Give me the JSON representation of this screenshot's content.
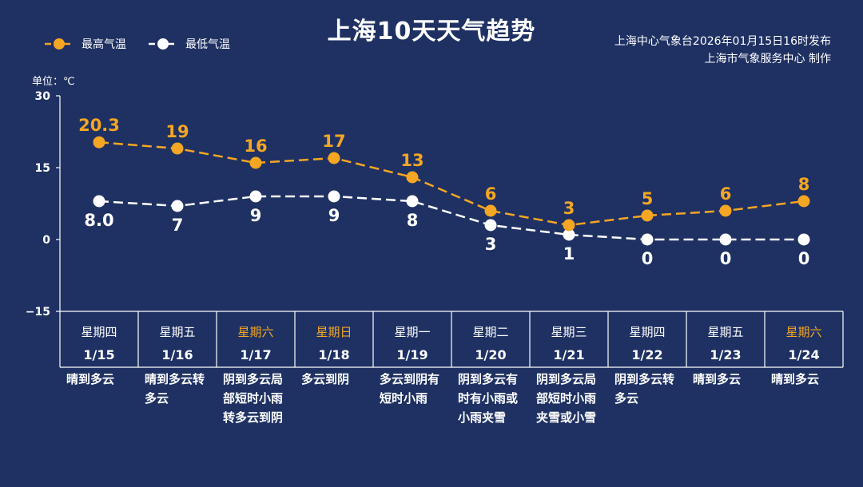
{
  "header": {
    "title": "上海10天天气趋势",
    "source_line1": "上海中心气象台2026年01月15日16时发布",
    "source_line2": "上海市气象服务中心 制作"
  },
  "legend": {
    "high_label": "最高气温",
    "low_label": "最低气温"
  },
  "colors": {
    "background": "#1f3163",
    "high": "#f5a623",
    "low": "#ffffff",
    "weekend": "#f5a623"
  },
  "chart_data": {
    "type": "line",
    "unit_label": "单位：℃",
    "ylim": [
      -15,
      30
    ],
    "yticks": [
      "30",
      "15",
      "0",
      "−15"
    ],
    "ytick_values": [
      30,
      15,
      0,
      -15
    ],
    "series": [
      {
        "name": "最高气温",
        "values": [
          20.3,
          19,
          16,
          17,
          13,
          6,
          3,
          5,
          6,
          8
        ],
        "labels": [
          "20.3",
          "19",
          "16",
          "17",
          "13",
          "6",
          "3",
          "5",
          "6",
          "8"
        ]
      },
      {
        "name": "最低气温",
        "values": [
          8,
          7,
          9,
          9,
          8,
          3,
          1,
          0,
          0,
          0
        ],
        "labels": [
          "8.0",
          "7",
          "9",
          "9",
          "8",
          "3",
          "1",
          "0",
          "0",
          "0"
        ]
      }
    ],
    "days": [
      {
        "weekday": "星期四",
        "date": "1/15",
        "weather": [
          "晴到多云"
        ],
        "weekend": false
      },
      {
        "weekday": "星期五",
        "date": "1/16",
        "weather": [
          "晴到多云转",
          "多云"
        ],
        "weekend": false
      },
      {
        "weekday": "星期六",
        "date": "1/17",
        "weather": [
          "阴到多云局",
          "部短时小雨",
          "转多云到阴"
        ],
        "weekend": true
      },
      {
        "weekday": "星期日",
        "date": "1/18",
        "weather": [
          "多云到阴"
        ],
        "weekend": true
      },
      {
        "weekday": "星期一",
        "date": "1/19",
        "weather": [
          "多云到阴有",
          "短时小雨"
        ],
        "weekend": false
      },
      {
        "weekday": "星期二",
        "date": "1/20",
        "weather": [
          "阴到多云有",
          "时有小雨或",
          "小雨夹雪"
        ],
        "weekend": false
      },
      {
        "weekday": "星期三",
        "date": "1/21",
        "weather": [
          "阴到多云局",
          "部短时小雨",
          "夹雪或小雪"
        ],
        "weekend": false
      },
      {
        "weekday": "星期四",
        "date": "1/22",
        "weather": [
          "阴到多云转",
          "多云"
        ],
        "weekend": false
      },
      {
        "weekday": "星期五",
        "date": "1/23",
        "weather": [
          "晴到多云"
        ],
        "weekend": false
      },
      {
        "weekday": "星期六",
        "date": "1/24",
        "weather": [
          "晴到多云"
        ],
        "weekend": true
      }
    ]
  }
}
